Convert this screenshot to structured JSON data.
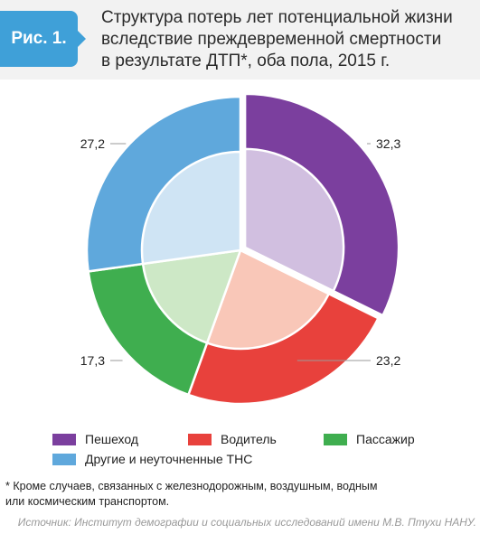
{
  "header": {
    "figure_label": "Рис. 1.",
    "title_line1": "Структура потерь лет потенциальной жизни",
    "title_line2": "вследствие преждевременной смертности",
    "title_line3": "в результате ДТП*, оба пола, 2015 г."
  },
  "chart_data": {
    "type": "pie",
    "categories": [
      "Пешеход",
      "Водитель",
      "Пассажир",
      "Другие и неуточненные ТНС"
    ],
    "values": [
      32.3,
      23.2,
      17.3,
      27.2
    ],
    "value_labels": [
      "32,3",
      "23,2",
      "17,3",
      "27,2"
    ],
    "colors": [
      "#7b3f9e",
      "#e8413c",
      "#3fae4f",
      "#5fa8dc"
    ],
    "inner_colors": [
      "#d1bfe0",
      "#f9c7b8",
      "#cde8c6",
      "#cfe4f4"
    ],
    "start_angle_deg": 0,
    "exploded_slice": "Пешеход",
    "legend_position": "bottom"
  },
  "legend": {
    "items": [
      {
        "label": "Пешеход",
        "color": "#7b3f9e"
      },
      {
        "label": "Водитель",
        "color": "#e8413c"
      },
      {
        "label": "Пассажир",
        "color": "#3fae4f"
      },
      {
        "label": "Другие и неуточненные ТНС",
        "color": "#5fa8dc"
      }
    ]
  },
  "footnote": {
    "line1": "* Кроме случаев, связанных с железнодорожным, воздушным, водным",
    "line2": "или космическим транспортом."
  },
  "source": "Источник: Институт демографии и социальных исследований имени М.В. Птухи НАНУ."
}
